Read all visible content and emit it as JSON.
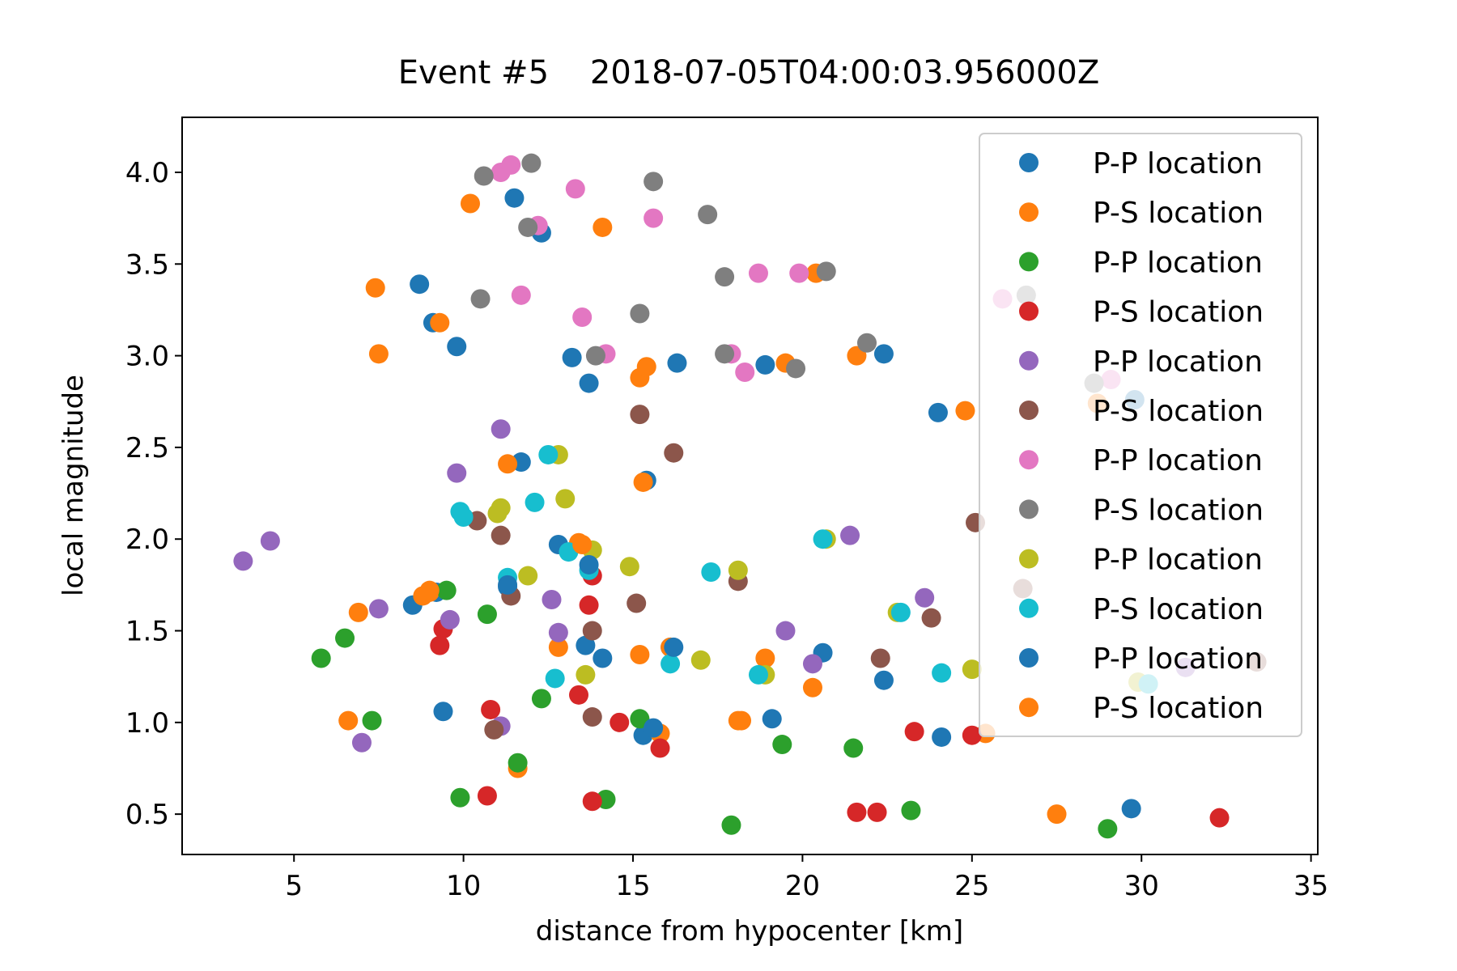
{
  "chart_data": {
    "type": "scatter",
    "title": "Event #5    2018-07-05T04:00:03.956000Z",
    "xlabel": "distance from hypocenter [km]",
    "ylabel": "local magnitude",
    "xlim": [
      1.7,
      35.2
    ],
    "ylim": [
      0.28,
      4.3
    ],
    "xticks": [
      5,
      10,
      15,
      20,
      25,
      30,
      35
    ],
    "yticks": [
      0.5,
      1.0,
      1.5,
      2.0,
      2.5,
      3.0,
      3.5,
      4.0
    ],
    "grid": false,
    "legend_position": "upper right",
    "series": [
      {
        "name": "P-P location",
        "color": "#1f77b4",
        "points": [
          [
            11.5,
            3.86
          ],
          [
            12.3,
            3.67
          ],
          [
            8.7,
            3.39
          ],
          [
            9.1,
            3.18
          ],
          [
            9.8,
            3.05
          ],
          [
            13.2,
            2.99
          ],
          [
            13.7,
            2.85
          ],
          [
            16.3,
            2.96
          ],
          [
            18.9,
            2.95
          ],
          [
            22.4,
            3.01
          ],
          [
            24.0,
            2.69
          ],
          [
            29.8,
            2.76
          ],
          [
            11.7,
            2.42
          ],
          [
            15.4,
            2.32
          ],
          [
            12.8,
            1.97
          ],
          [
            8.5,
            1.64
          ],
          [
            9.2,
            1.71
          ],
          [
            11.3,
            1.74
          ],
          [
            13.6,
            1.42
          ],
          [
            14.1,
            1.35
          ],
          [
            16.1,
            1.41
          ],
          [
            20.6,
            1.38
          ],
          [
            22.4,
            1.23
          ],
          [
            9.4,
            1.06
          ],
          [
            15.3,
            0.93
          ],
          [
            19.1,
            1.02
          ],
          [
            24.1,
            0.92
          ],
          [
            29.7,
            0.53
          ]
        ]
      },
      {
        "name": "P-S location",
        "color": "#ff7f0e",
        "points": [
          [
            10.2,
            3.83
          ],
          [
            14.1,
            3.7
          ],
          [
            7.4,
            3.37
          ],
          [
            9.3,
            3.18
          ],
          [
            7.5,
            3.01
          ],
          [
            15.2,
            2.88
          ],
          [
            15.4,
            2.94
          ],
          [
            19.5,
            2.96
          ],
          [
            20.4,
            3.45
          ],
          [
            21.6,
            3.0
          ],
          [
            24.8,
            2.7
          ],
          [
            28.7,
            2.74
          ],
          [
            11.3,
            2.41
          ],
          [
            15.3,
            2.31
          ],
          [
            13.4,
            1.98
          ],
          [
            6.9,
            1.6
          ],
          [
            8.8,
            1.69
          ],
          [
            9.0,
            1.71
          ],
          [
            12.8,
            1.41
          ],
          [
            15.2,
            1.37
          ],
          [
            16.1,
            1.41
          ],
          [
            18.9,
            1.35
          ],
          [
            20.3,
            1.19
          ],
          [
            6.6,
            1.01
          ],
          [
            15.8,
            0.94
          ],
          [
            18.2,
            1.01
          ],
          [
            25.4,
            0.94
          ],
          [
            11.6,
            0.75
          ],
          [
            27.5,
            0.5
          ]
        ]
      },
      {
        "name": "P-P location",
        "color": "#2ca02c",
        "points": [
          [
            5.8,
            1.35
          ],
          [
            6.5,
            1.46
          ],
          [
            9.5,
            1.72
          ],
          [
            10.7,
            1.59
          ],
          [
            7.3,
            1.01
          ],
          [
            12.3,
            1.13
          ],
          [
            15.2,
            1.02
          ],
          [
            11.6,
            0.78
          ],
          [
            19.4,
            0.88
          ],
          [
            21.5,
            0.86
          ],
          [
            9.9,
            0.59
          ],
          [
            14.2,
            0.58
          ],
          [
            17.9,
            0.44
          ],
          [
            23.2,
            0.52
          ],
          [
            29.0,
            0.42
          ]
        ]
      },
      {
        "name": "P-S location",
        "color": "#d62728",
        "points": [
          [
            9.4,
            1.51
          ],
          [
            9.3,
            1.42
          ],
          [
            13.8,
            1.8
          ],
          [
            13.7,
            1.64
          ],
          [
            13.4,
            1.15
          ],
          [
            10.8,
            1.07
          ],
          [
            14.6,
            1.0
          ],
          [
            15.8,
            0.86
          ],
          [
            13.8,
            0.57
          ],
          [
            10.7,
            0.6
          ],
          [
            21.6,
            0.51
          ],
          [
            22.2,
            0.51
          ],
          [
            23.3,
            0.95
          ],
          [
            25.0,
            0.93
          ],
          [
            32.3,
            0.48
          ]
        ]
      },
      {
        "name": "P-P location",
        "color": "#9467bd",
        "points": [
          [
            3.5,
            1.88
          ],
          [
            4.3,
            1.99
          ],
          [
            7.5,
            1.62
          ],
          [
            9.6,
            1.56
          ],
          [
            7.0,
            0.89
          ],
          [
            9.8,
            2.36
          ],
          [
            11.1,
            2.6
          ],
          [
            12.6,
            1.67
          ],
          [
            12.8,
            1.49
          ],
          [
            11.1,
            0.98
          ],
          [
            19.5,
            1.5
          ],
          [
            20.3,
            1.32
          ],
          [
            21.4,
            2.02
          ],
          [
            23.6,
            1.68
          ],
          [
            31.3,
            1.3
          ]
        ]
      },
      {
        "name": "P-S location",
        "color": "#8c564b",
        "points": [
          [
            15.2,
            2.68
          ],
          [
            16.2,
            2.47
          ],
          [
            10.4,
            2.1
          ],
          [
            11.1,
            2.02
          ],
          [
            11.4,
            1.69
          ],
          [
            13.8,
            1.5
          ],
          [
            13.8,
            1.03
          ],
          [
            15.1,
            1.65
          ],
          [
            18.1,
            1.77
          ],
          [
            22.3,
            1.35
          ],
          [
            23.8,
            1.57
          ],
          [
            25.1,
            2.09
          ],
          [
            26.5,
            1.73
          ],
          [
            10.9,
            0.96
          ],
          [
            33.4,
            1.33
          ]
        ]
      },
      {
        "name": "P-P location",
        "color": "#e377c2",
        "points": [
          [
            11.1,
            4.0
          ],
          [
            11.4,
            4.04
          ],
          [
            12.2,
            3.71
          ],
          [
            13.3,
            3.91
          ],
          [
            15.6,
            3.75
          ],
          [
            11.7,
            3.33
          ],
          [
            13.5,
            3.21
          ],
          [
            14.2,
            3.01
          ],
          [
            17.9,
            3.01
          ],
          [
            18.7,
            3.45
          ],
          [
            18.3,
            2.91
          ],
          [
            19.9,
            3.45
          ],
          [
            25.9,
            3.31
          ],
          [
            29.1,
            2.87
          ]
        ]
      },
      {
        "name": "P-S location",
        "color": "#7f7f7f",
        "points": [
          [
            10.6,
            3.98
          ],
          [
            12.0,
            4.05
          ],
          [
            11.9,
            3.7
          ],
          [
            15.6,
            3.95
          ],
          [
            17.2,
            3.77
          ],
          [
            10.5,
            3.31
          ],
          [
            15.2,
            3.23
          ],
          [
            17.7,
            3.43
          ],
          [
            20.7,
            3.46
          ],
          [
            13.9,
            3.0
          ],
          [
            17.7,
            3.01
          ],
          [
            19.8,
            2.93
          ],
          [
            21.9,
            3.07
          ],
          [
            26.6,
            3.33
          ],
          [
            28.6,
            2.85
          ]
        ]
      },
      {
        "name": "P-P location",
        "color": "#bcbd22",
        "points": [
          [
            12.8,
            2.46
          ],
          [
            13.0,
            2.22
          ],
          [
            11.0,
            2.14
          ],
          [
            11.1,
            2.17
          ],
          [
            11.9,
            1.8
          ],
          [
            13.8,
            1.94
          ],
          [
            14.9,
            1.85
          ],
          [
            18.1,
            1.83
          ],
          [
            13.6,
            1.26
          ],
          [
            17.0,
            1.34
          ],
          [
            18.9,
            1.26
          ],
          [
            20.7,
            2.0
          ],
          [
            22.8,
            1.6
          ],
          [
            25.0,
            1.29
          ],
          [
            29.9,
            1.22
          ]
        ]
      },
      {
        "name": "P-S location",
        "color": "#17becf",
        "points": [
          [
            12.5,
            2.46
          ],
          [
            12.1,
            2.2
          ],
          [
            9.9,
            2.15
          ],
          [
            10.0,
            2.12
          ],
          [
            11.3,
            1.79
          ],
          [
            13.1,
            1.93
          ],
          [
            13.7,
            1.83
          ],
          [
            17.3,
            1.82
          ],
          [
            12.7,
            1.24
          ],
          [
            16.1,
            1.32
          ],
          [
            18.7,
            1.26
          ],
          [
            20.6,
            2.0
          ],
          [
            22.9,
            1.6
          ],
          [
            24.1,
            1.27
          ],
          [
            30.2,
            1.21
          ]
        ]
      },
      {
        "name": "P-P location",
        "color": "#1f77b4",
        "points": [
          [
            11.3,
            1.75
          ],
          [
            13.7,
            1.86
          ],
          [
            15.6,
            0.97
          ],
          [
            16.2,
            1.41
          ]
        ]
      },
      {
        "name": "P-S location",
        "color": "#ff7f0e",
        "points": [
          [
            9.0,
            1.72
          ],
          [
            13.5,
            1.97
          ],
          [
            18.1,
            1.01
          ]
        ]
      }
    ]
  }
}
